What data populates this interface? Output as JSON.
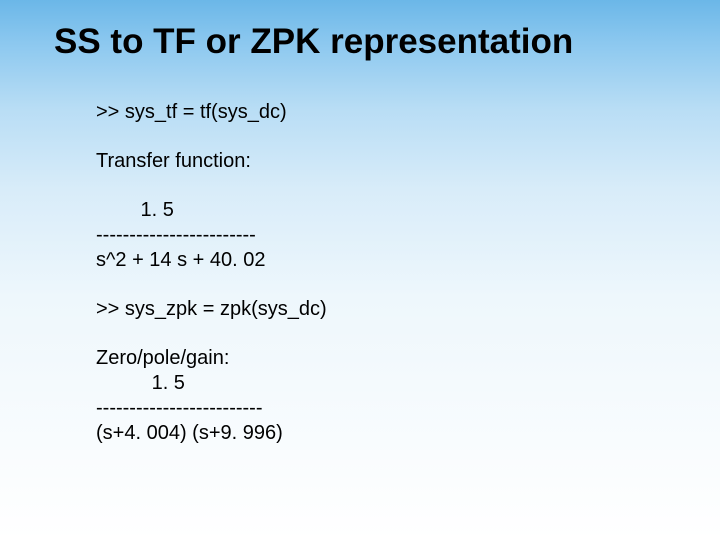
{
  "slide": {
    "title": "SS to TF or ZPK representation",
    "lines": {
      "l1": ">> sys_tf = tf(sys_dc)",
      "l2": "Transfer function:",
      "l3": "        1. 5",
      "l4": "------------------------",
      "l5": "s^2 + 14 s + 40. 02",
      "l6": ">> sys_zpk = zpk(sys_dc)",
      "l7": "Zero/pole/gain:",
      "l8": "          1. 5",
      "l9": "-------------------------",
      "l10": "(s+4. 004) (s+9. 996)"
    },
    "colors": {
      "text": "#000000",
      "gradient_top": "#6bb7e8",
      "gradient_bottom": "#ffffff"
    },
    "fonts": {
      "title_size_pt": 28,
      "body_size_pt": 16,
      "family": "Arial"
    }
  }
}
